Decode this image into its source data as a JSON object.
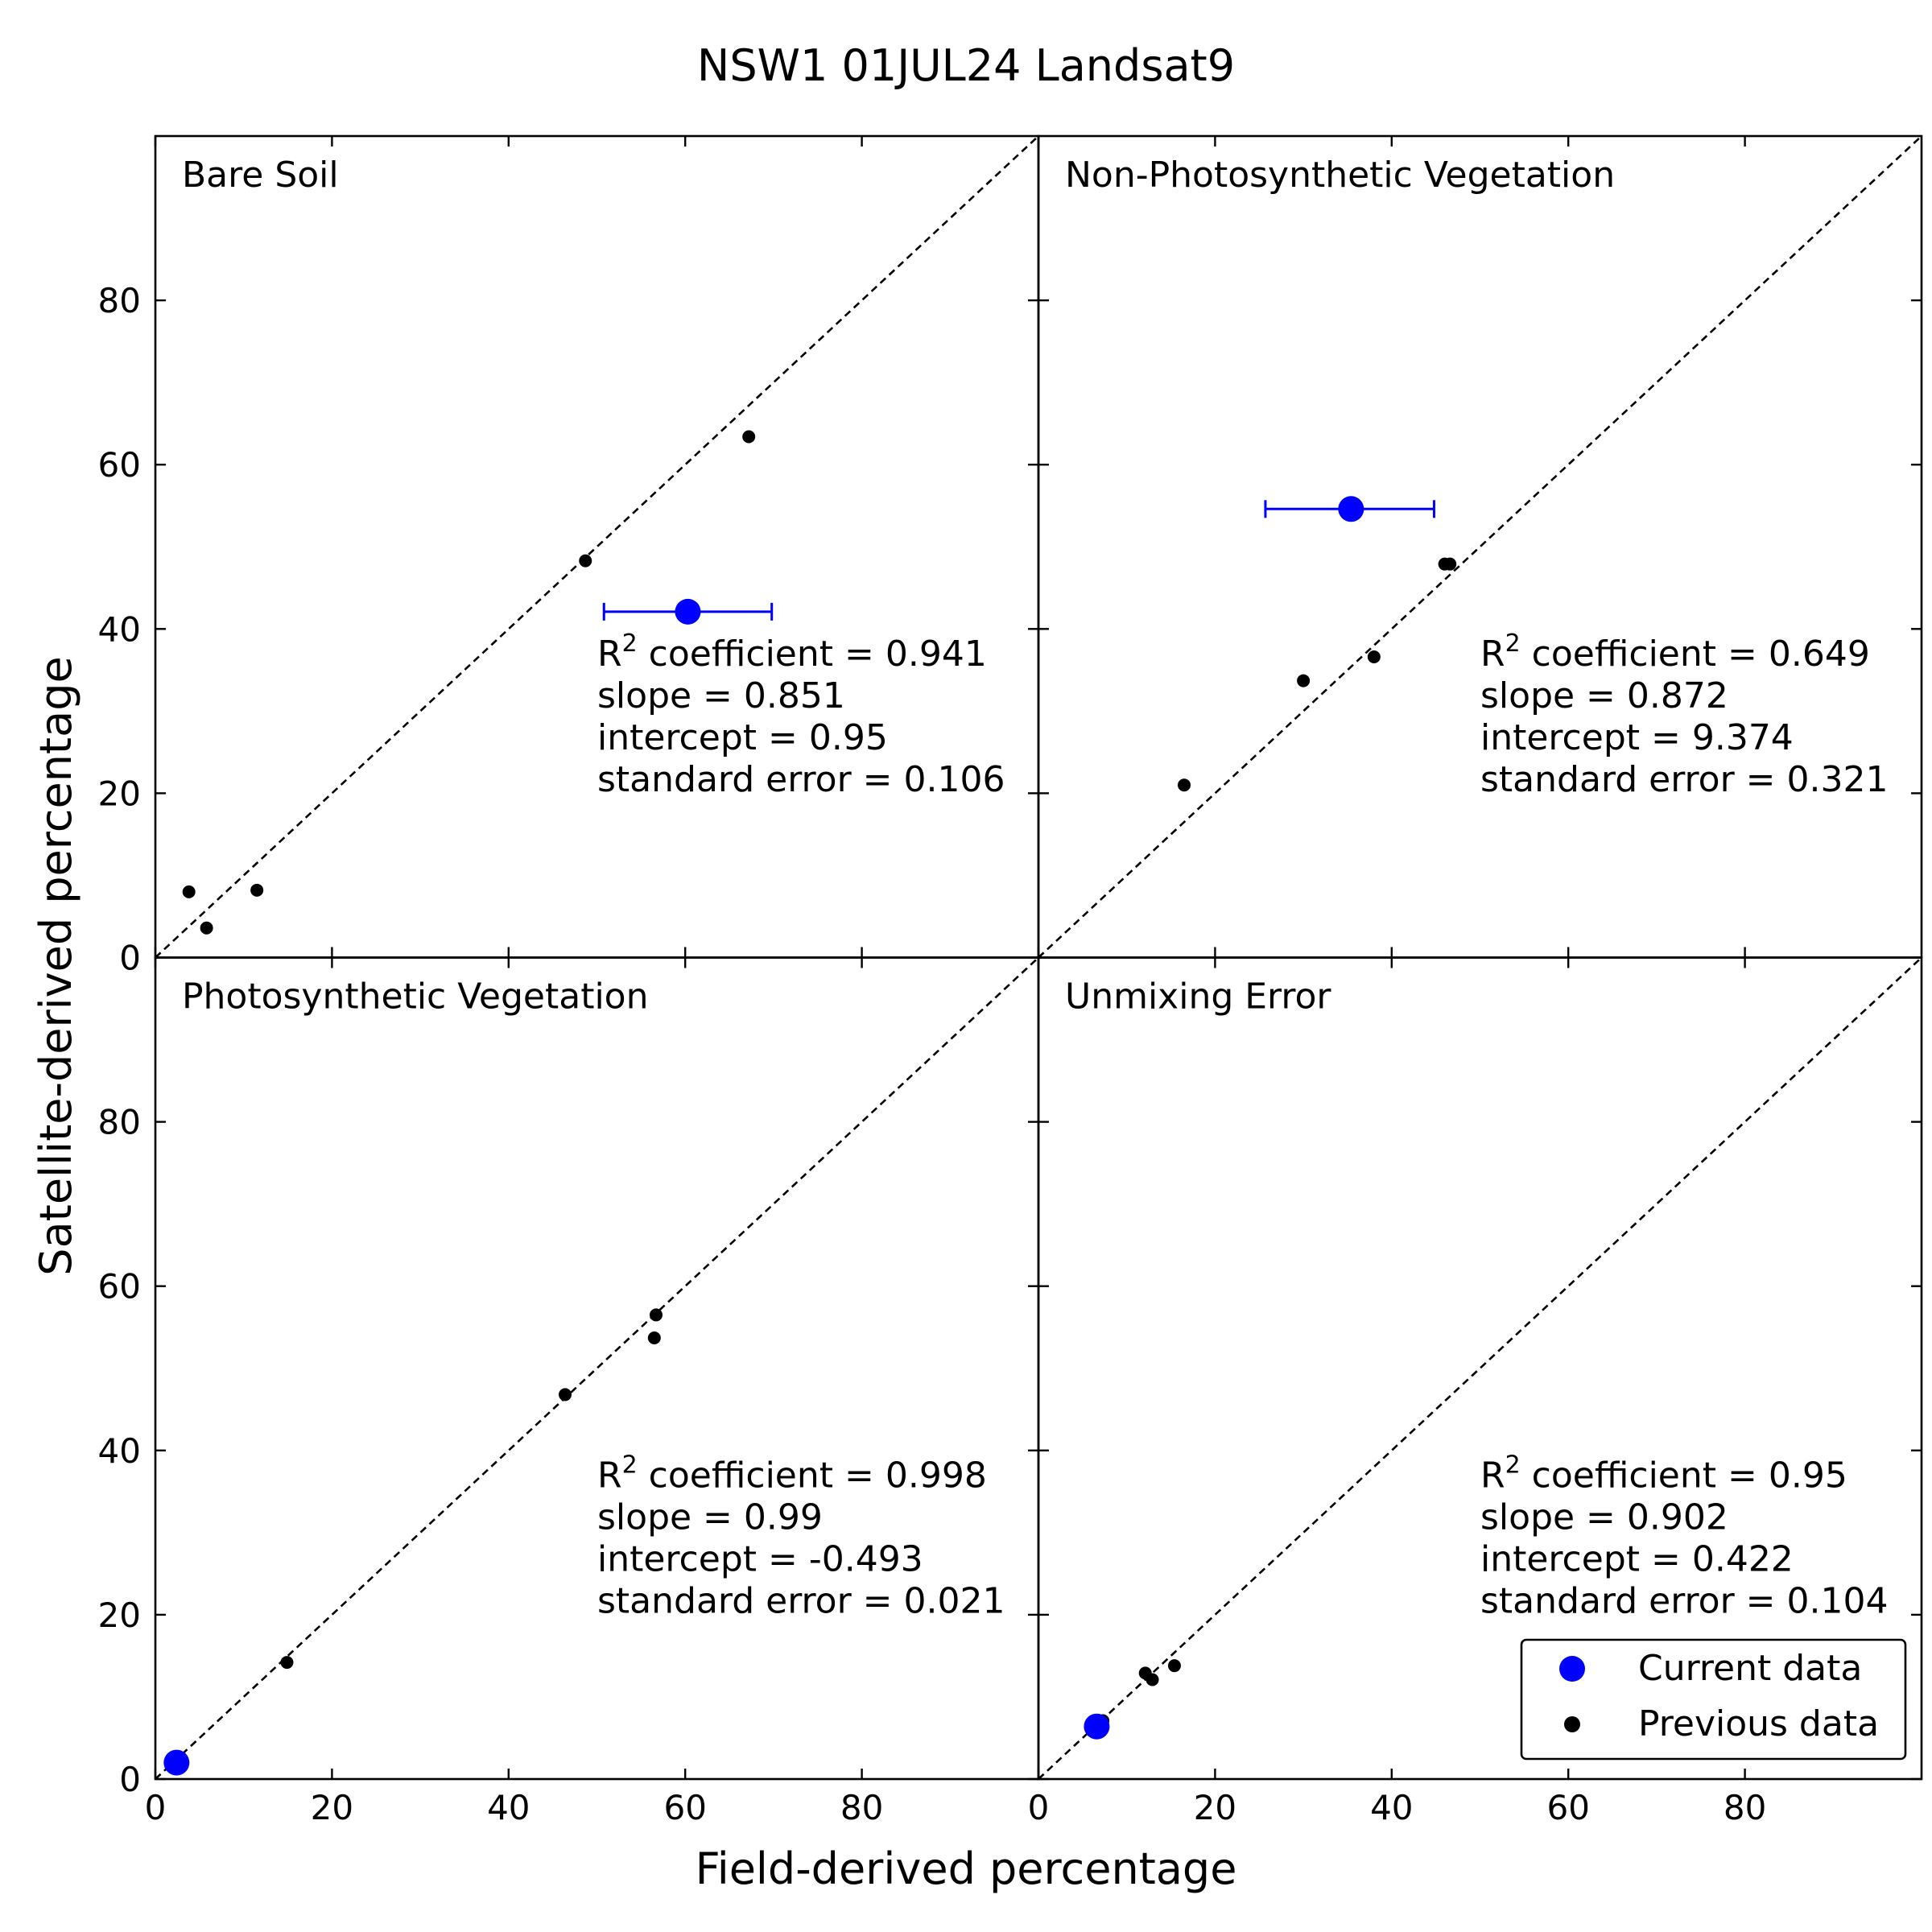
{
  "title": "NSW1  01JUL24  Landsat9",
  "xlabel": "Field-derived percentage",
  "ylabel": "Satellite-derived percentage",
  "legend": {
    "current_label": "Current data",
    "previous_label": "Previous data",
    "current_color": "#0000ff",
    "previous_color": "#000000",
    "placement": "lower-right of bottom-right panel"
  },
  "chart_data": [
    {
      "type": "scatter",
      "title": "Bare Soil",
      "xlim": [
        0,
        100
      ],
      "ylim": [
        0,
        100
      ],
      "xticks": [
        0,
        20,
        40,
        60,
        80
      ],
      "yticks": [
        0,
        20,
        40,
        60,
        80
      ],
      "identity_line": true,
      "previous": [
        [
          3.8,
          8.0
        ],
        [
          5.8,
          3.6
        ],
        [
          11.5,
          8.2
        ],
        [
          48.7,
          48.3
        ],
        [
          67.2,
          63.4
        ]
      ],
      "current": {
        "x": 60.3,
        "y": 42.1,
        "xerr": [
          50.8,
          69.8
        ]
      },
      "stats": {
        "r2": "0.941",
        "slope": "0.851",
        "intercept": "0.95",
        "stderr": "0.106"
      }
    },
    {
      "type": "scatter",
      "title": "Non-Photosynthetic Vegetation",
      "xlim": [
        0,
        100
      ],
      "ylim": [
        0,
        100
      ],
      "xticks": [
        0,
        20,
        40,
        60,
        80
      ],
      "yticks": [
        0,
        20,
        40,
        60,
        80
      ],
      "identity_line": true,
      "previous": [
        [
          16.5,
          21.0
        ],
        [
          30.0,
          33.7
        ],
        [
          38.0,
          36.6
        ],
        [
          46.0,
          47.9
        ],
        [
          46.6,
          47.9
        ]
      ],
      "current": {
        "x": 35.4,
        "y": 54.6,
        "xerr": [
          25.7,
          44.8
        ]
      },
      "stats": {
        "r2": "0.649",
        "slope": "0.872",
        "intercept": "9.374",
        "stderr": "0.321"
      }
    },
    {
      "type": "scatter",
      "title": "Photosynthetic Vegetation",
      "xlim": [
        0,
        100
      ],
      "ylim": [
        0,
        100
      ],
      "xticks": [
        0,
        20,
        40,
        60,
        80
      ],
      "yticks": [
        0,
        20,
        40,
        60,
        80
      ],
      "identity_line": true,
      "previous": [
        [
          2.2,
          2.0
        ],
        [
          14.9,
          14.2
        ],
        [
          46.4,
          46.8
        ],
        [
          56.5,
          53.7
        ],
        [
          56.7,
          56.5
        ]
      ],
      "current": {
        "x": 2.4,
        "y": 2.0
      },
      "stats": {
        "r2": "0.998",
        "slope": "0.99",
        "intercept": "-0.493",
        "stderr": "0.021"
      }
    },
    {
      "type": "scatter",
      "title": "Unmixing Error",
      "xlim": [
        0,
        100
      ],
      "ylim": [
        0,
        100
      ],
      "xticks": [
        0,
        20,
        40,
        60,
        80
      ],
      "yticks": [
        0,
        20,
        40,
        60,
        80
      ],
      "identity_line": true,
      "previous": [
        [
          7.3,
          7.1
        ],
        [
          12.1,
          12.9
        ],
        [
          12.9,
          12.1
        ],
        [
          15.4,
          13.8
        ]
      ],
      "current": {
        "x": 6.6,
        "y": 6.4
      },
      "stats": {
        "r2": "0.95",
        "slope": "0.902",
        "intercept": "0.422",
        "stderr": "0.104"
      }
    }
  ]
}
